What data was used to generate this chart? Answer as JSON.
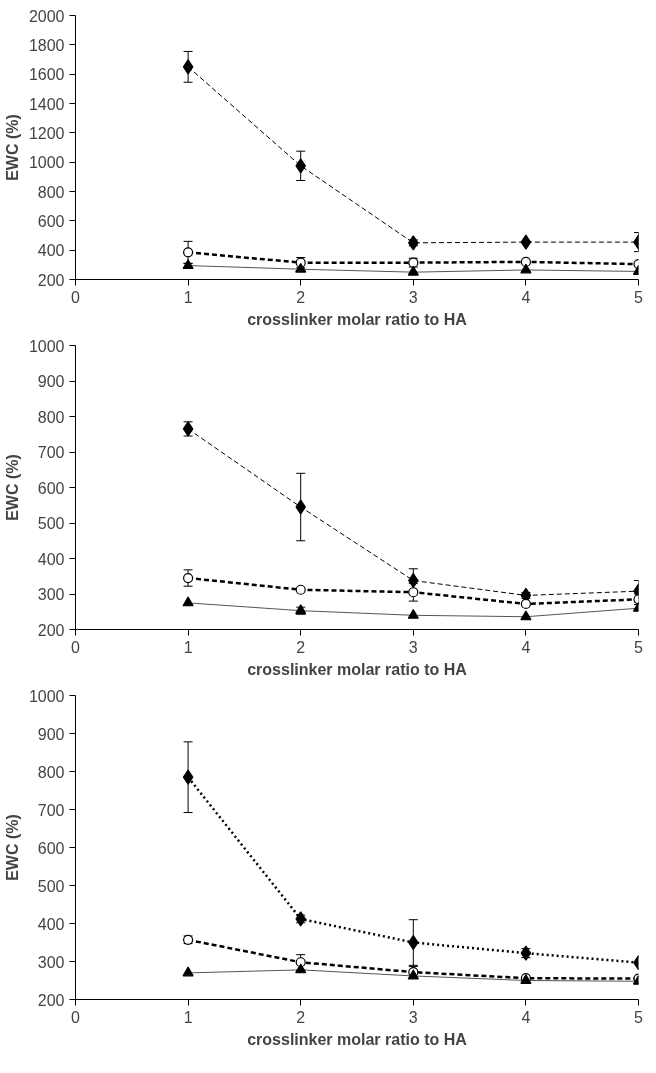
{
  "chart_data": [
    {
      "type": "line",
      "xlabel": "crosslinker molar ratio to HA",
      "ylabel": "EWC (%)",
      "x": [
        1,
        2,
        3,
        4,
        5
      ],
      "xlim": [
        0,
        5
      ],
      "xticks": [
        0,
        1,
        2,
        3,
        4,
        5
      ],
      "ylim": [
        200,
        2000
      ],
      "yticks": [
        200,
        400,
        600,
        800,
        1000,
        1200,
        1400,
        1600,
        1800,
        2000
      ],
      "series": [
        {
          "color": "#000000",
          "marker": "diamond",
          "line_style": "dashed",
          "values": [
            1650,
            975,
            450,
            455,
            455
          ],
          "errors": [
            105,
            100,
            20,
            null,
            65
          ]
        },
        {
          "color": "#000000",
          "marker": "circle",
          "line_style": "dashed",
          "values": [
            385,
            315,
            315,
            320,
            305
          ],
          "errors": [
            75,
            35,
            30,
            null,
            null
          ]
        },
        {
          "color": "#000000",
          "marker": "triangle",
          "line_style": "solid",
          "values": [
            295,
            270,
            250,
            265,
            255
          ],
          "errors": [
            15,
            null,
            null,
            null,
            null
          ]
        }
      ]
    },
    {
      "type": "line",
      "xlabel": "crosslinker molar ratio to HA",
      "ylabel": "EWC (%)",
      "x": [
        1,
        2,
        3,
        4,
        5
      ],
      "xlim": [
        0,
        5
      ],
      "xticks": [
        0,
        1,
        2,
        3,
        4,
        5
      ],
      "ylim": [
        200,
        1000
      ],
      "yticks": [
        200,
        300,
        400,
        500,
        600,
        700,
        800,
        900,
        1000
      ],
      "series": [
        {
          "color": "#000000",
          "marker": "diamond",
          "line_style": "dashed",
          "values": [
            765,
            545,
            338,
            296,
            308
          ],
          "errors": [
            20,
            95,
            33,
            8,
            30
          ]
        },
        {
          "color": "#000000",
          "marker": "circle",
          "line_style": "dashed",
          "values": [
            345,
            312,
            305,
            272,
            285
          ],
          "errors": [
            23,
            null,
            25,
            null,
            15
          ]
        },
        {
          "color": "#000000",
          "marker": "triangle",
          "line_style": "solid",
          "values": [
            275,
            253,
            240,
            236,
            260
          ],
          "errors": [
            null,
            10,
            null,
            null,
            null
          ]
        }
      ]
    },
    {
      "type": "line",
      "xlabel": "crosslinker molar ratio to HA",
      "ylabel": "EWC (%)",
      "x": [
        1,
        2,
        3,
        4,
        5
      ],
      "xlim": [
        0,
        5
      ],
      "xticks": [
        0,
        1,
        2,
        3,
        4,
        5
      ],
      "ylim": [
        200,
        1000
      ],
      "yticks": [
        200,
        300,
        400,
        500,
        600,
        700,
        800,
        900,
        1000
      ],
      "series": [
        {
          "color": "#000000",
          "marker": "diamond",
          "line_style": "dotted",
          "values": [
            785,
            412,
            350,
            322,
            297
          ],
          "errors": [
            93,
            10,
            60,
            12,
            null
          ]
        },
        {
          "color": "#000000",
          "marker": "circle",
          "line_style": "dashed",
          "values": [
            357,
            298,
            272,
            256,
            255
          ],
          "errors": [
            10,
            20,
            15,
            null,
            null
          ]
        },
        {
          "color": "#000000",
          "marker": "triangle",
          "line_style": "solid",
          "values": [
            270,
            278,
            262,
            250,
            248
          ],
          "errors": [
            null,
            null,
            null,
            null,
            null
          ]
        }
      ]
    }
  ]
}
